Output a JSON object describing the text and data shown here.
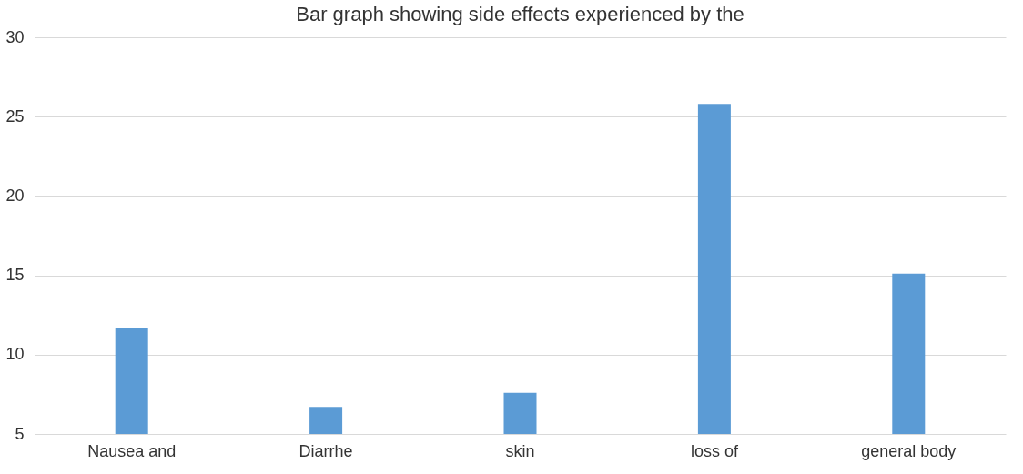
{
  "chart_data": {
    "type": "bar",
    "title": "Bar graph showing side effects experienced by the",
    "categories": [
      "Nausea and",
      "Diarrhe",
      "skin",
      "loss of",
      "general body"
    ],
    "values": [
      11.7,
      6.7,
      7.6,
      25.8,
      15.1
    ],
    "color": "#5b9bd5",
    "ylim": [
      5,
      30
    ],
    "yticks": [
      5,
      10,
      15,
      20,
      25,
      30
    ],
    "grid": "y"
  }
}
